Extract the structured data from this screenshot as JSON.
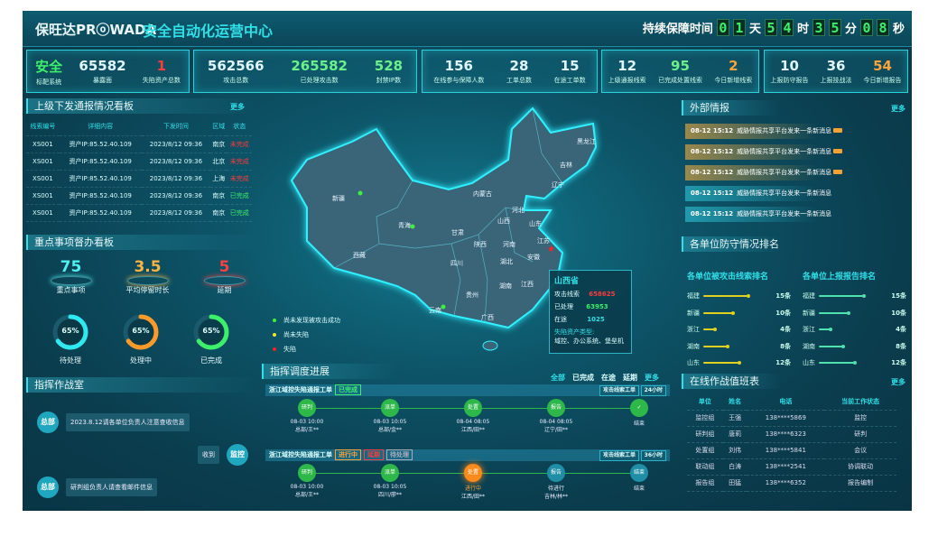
{
  "header": {
    "brand": "保旺达PRⓞWADA",
    "title": "安全自动化运营中心",
    "timer_label": "持续保障时间",
    "days": [
      "0",
      "1"
    ],
    "day_unit": "天",
    "hours": [
      "5",
      "4"
    ],
    "hour_unit": "时",
    "minutes": [
      "3",
      "5"
    ],
    "minute_unit": "分",
    "seconds": [
      "0",
      "8"
    ],
    "second_unit": "秒"
  },
  "stat_groups": [
    [
      {
        "value": "安全",
        "label": "标靶系统",
        "color": "#3cf06a"
      },
      {
        "value": "65582",
        "label": "暴露面",
        "color": "#dff6ff"
      },
      {
        "value": "1",
        "label": "失陷资产总数",
        "color": "#ff3b3b"
      }
    ],
    [
      {
        "value": "562566",
        "label": "攻击总数",
        "color": "#dff6ff"
      },
      {
        "value": "265582",
        "label": "已处理攻击数",
        "color": "#6cf08a"
      },
      {
        "value": "528",
        "label": "封禁IP数",
        "color": "#6cf08a"
      }
    ],
    [
      {
        "value": "156",
        "label": "在线参与保障人数",
        "color": "#dff6ff"
      },
      {
        "value": "28",
        "label": "工单总数",
        "color": "#dff6ff"
      },
      {
        "value": "15",
        "label": "在途工单数",
        "color": "#dff6ff"
      }
    ],
    [
      {
        "value": "12",
        "label": "上级通报线索",
        "color": "#dff6ff"
      },
      {
        "value": "95",
        "label": "已完成处置线索",
        "color": "#6cf08a"
      },
      {
        "value": "2",
        "label": "今日新增线索",
        "color": "#ffa33a"
      }
    ],
    [
      {
        "value": "10",
        "label": "上报防守报告",
        "color": "#dff6ff"
      },
      {
        "value": "36",
        "label": "上报技战法",
        "color": "#dff6ff"
      },
      {
        "value": "54",
        "label": "今日新增报告",
        "color": "#ffa33a"
      }
    ]
  ],
  "notices": {
    "title": "上级下发通报情况看板",
    "more": "更多",
    "columns": [
      "线索编号",
      "详细内容",
      "下发时间",
      "区域",
      "状态"
    ],
    "rows": [
      {
        "id": "XS001",
        "detail": "资产IP:85.52.40.109",
        "time": "2023/8/12 09:36",
        "region": "南京",
        "status": "未完成",
        "done": false
      },
      {
        "id": "XS001",
        "detail": "资产IP:85.52.40.109",
        "time": "2023/8/12 09:36",
        "region": "北京",
        "status": "未完成",
        "done": false
      },
      {
        "id": "XS001",
        "detail": "资产IP:85.52.40.109",
        "time": "2023/8/12 09:36",
        "region": "上海",
        "status": "未完成",
        "done": false
      },
      {
        "id": "XS001",
        "detail": "资产IP:85.52.40.109",
        "time": "2023/8/12 09:36",
        "region": "南京",
        "status": "已完成",
        "done": true
      },
      {
        "id": "XS001",
        "detail": "资产IP:85.52.40.109",
        "time": "2023/8/12 09:36",
        "region": "南京",
        "status": "已完成",
        "done": true
      }
    ]
  },
  "key_items": {
    "title": "重点事项督办看板",
    "metrics": [
      {
        "value": "75",
        "label": "重点事项",
        "color": "#4ff0f0"
      },
      {
        "value": "3.5",
        "label": "平均停留时长",
        "color": "#ffb340"
      },
      {
        "value": "5",
        "label": "延期",
        "color": "#ff4040"
      }
    ],
    "rings": [
      {
        "percent": 65,
        "text": "65%",
        "label": "待处理",
        "color": "#2fe8f0"
      },
      {
        "percent": 65,
        "text": "65%",
        "label": "处理中",
        "color": "#ff9a2a"
      },
      {
        "percent": 65,
        "text": "65%",
        "label": "已完成",
        "color": "#3cf06a"
      }
    ]
  },
  "war_room": {
    "title": "指挥作战室",
    "messages": [
      {
        "sender": "总部",
        "text": "2023.8.12请各单位负责人注意查收信息",
        "side": "left"
      },
      {
        "sender": "监控",
        "text": "收到",
        "side": "right"
      },
      {
        "sender": "总部",
        "text": "研判组负责人请查看邮件信息",
        "side": "left"
      }
    ]
  },
  "map": {
    "provinces": [
      "新疆",
      "青海",
      "西藏",
      "内蒙古",
      "黑龙江",
      "吉林",
      "辽宁",
      "河北",
      "山西",
      "山东",
      "甘肃",
      "陕西",
      "河南",
      "江苏",
      "安徽",
      "四川",
      "湖北",
      "湖南",
      "江西",
      "贵州",
      "云南",
      "广西"
    ],
    "legend": [
      {
        "label": "尚未发现被攻击成功",
        "color": "#3cf03c"
      },
      {
        "label": "尚未失陷",
        "color": "#f5e22a"
      },
      {
        "label": "失陷",
        "color": "#ff2020"
      }
    ],
    "tooltip": {
      "province": "山西省",
      "attack_label": "攻击线索",
      "attack_value": "658625",
      "handled_label": "已处理",
      "handled_value": "63953",
      "ongoing_label": "在途",
      "ongoing_value": "1025",
      "asset_label": "失陷资产类型:",
      "asset_value": "域控、办公系统、堡垒机"
    }
  },
  "dispatch": {
    "title": "指挥调度进展",
    "tabs": [
      "全部",
      "已完成",
      "在途",
      "延期"
    ],
    "more": "更多",
    "orders": [
      {
        "name": "浙江域控失陷通报工单",
        "tags": [
          {
            "text": "已完成",
            "color": "#3cf06a"
          }
        ],
        "type": "攻击线索工单",
        "duration": "24小时",
        "steps": [
          {
            "node": "研判",
            "l1": "08-03 10:00",
            "l2": "总部/王**",
            "state": "done"
          },
          {
            "node": "派单",
            "l1": "08-03 10:05",
            "l2": "总部/金**",
            "state": "done"
          },
          {
            "node": "处置",
            "l1": "08-04 08:05",
            "l2": "江西/田**",
            "state": "done"
          },
          {
            "node": "报告",
            "l1": "08-04 08:05",
            "l2": "辽宁/田**",
            "state": "done"
          },
          {
            "node": "✓",
            "l1": "结束",
            "l2": "",
            "state": "done"
          }
        ]
      },
      {
        "name": "浙江域控失陷通报工单",
        "tags": [
          {
            "text": "进行中",
            "color": "#ffa33a"
          },
          {
            "text": "延期",
            "color": "#ff3b3b"
          },
          {
            "text": "待处理",
            "color": "#aab"
          }
        ],
        "type": "攻击线索工单",
        "duration": "36小时",
        "steps": [
          {
            "node": "研判",
            "l1": "08-03 10:00",
            "l2": "总部/王**",
            "state": "done"
          },
          {
            "node": "派单",
            "l1": "08-03 10:05",
            "l2": "四川/廖**",
            "state": "done"
          },
          {
            "node": "处置",
            "l1": "进行中",
            "l2": "江西/田**",
            "state": "active"
          },
          {
            "node": "报告",
            "l1": "待进行",
            "l2": "吉林/林**",
            "state": "todo"
          },
          {
            "node": "结束",
            "l1": "结束",
            "l2": "",
            "state": "todo"
          }
        ]
      }
    ]
  },
  "intel": {
    "title": "外部情报",
    "more": "更多",
    "items": [
      {
        "time": "08-12 15:12",
        "text": "威胁情报共享平台发来一条新消息",
        "new": true
      },
      {
        "time": "08-12 15:12",
        "text": "威胁情报共享平台发来一条新消息",
        "new": true
      },
      {
        "time": "08-12 15:12",
        "text": "威胁情报共享平台发来一条新消息",
        "new": true
      },
      {
        "time": "08-12 15:12",
        "text": "威胁情报共享平台发来一条新消息",
        "new": false
      },
      {
        "time": "08-12 15:12",
        "text": "威胁情报共享平台发来一条新消息",
        "new": false
      }
    ]
  },
  "ranking": {
    "title": "各单位防守情况排名",
    "lists": [
      {
        "title": "各单位被攻击线索排名",
        "color": "#e0d020",
        "rows": [
          {
            "name": "福建",
            "value": 15,
            "text": "15条"
          },
          {
            "name": "新疆",
            "value": 10,
            "text": "10条"
          },
          {
            "name": "浙江",
            "value": 4,
            "text": "4条"
          },
          {
            "name": "湖南",
            "value": 8,
            "text": "8条"
          },
          {
            "name": "山东",
            "value": 12,
            "text": "12条"
          }
        ]
      },
      {
        "title": "各单位上报报告排名",
        "color": "#4fe0b0",
        "rows": [
          {
            "name": "福建",
            "value": 15,
            "text": "15条"
          },
          {
            "name": "新疆",
            "value": 10,
            "text": "10条"
          },
          {
            "name": "浙江",
            "value": 4,
            "text": "4条"
          },
          {
            "name": "湖南",
            "value": 8,
            "text": "8条"
          },
          {
            "name": "山东",
            "value": 12,
            "text": "12条"
          }
        ]
      }
    ]
  },
  "duty": {
    "title": "在线作战值班表",
    "more": "更多",
    "columns": [
      "单位",
      "姓名",
      "电话",
      "当前工作状态"
    ],
    "rows": [
      [
        "监控组",
        "王强",
        "138****5869",
        "监控"
      ],
      [
        "研判组",
        "唐莉",
        "138****6323",
        "研判"
      ],
      [
        "处置组",
        "刘伟",
        "138****5841",
        "会议"
      ],
      [
        "联动组",
        "白涛",
        "138****2541",
        "协调联动"
      ],
      [
        "报告组",
        "田猛",
        "138****6352",
        "报告编制"
      ]
    ]
  }
}
